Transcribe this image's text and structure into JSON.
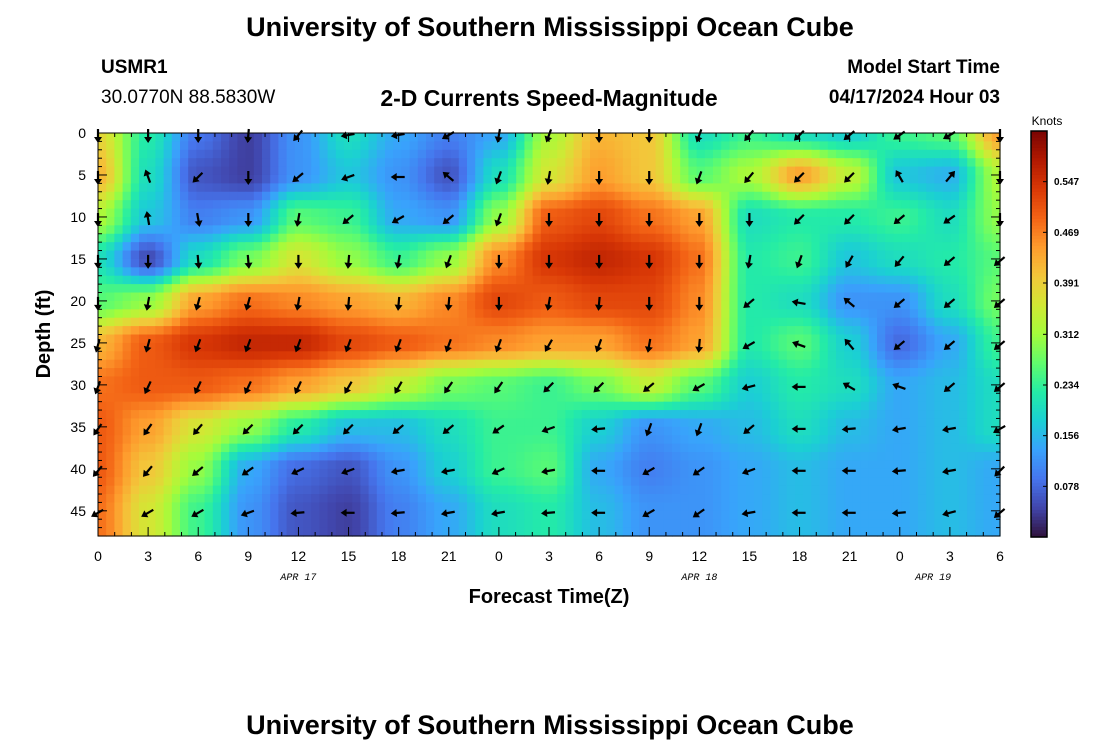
{
  "header": {
    "title": "University of Southern Mississippi Ocean Cube",
    "station_id": "USMR1",
    "coordinates": "30.0770N  88.5830W",
    "subtitle": "2-D Currents Speed-Magnitude",
    "model_label": "Model Start Time",
    "model_time": "04/17/2024 Hour 03"
  },
  "footer": {
    "title": "University of Southern Mississippi Ocean Cube"
  },
  "colors": {
    "scale": [
      "#30123b",
      "#4145ab",
      "#4675ed",
      "#39a2fc",
      "#1bcfd4",
      "#24eca6",
      "#61fc6c",
      "#a4fc3b",
      "#d1e834",
      "#f3c63a",
      "#fe9b2d",
      "#f36315",
      "#d93806",
      "#b11901",
      "#7a0402"
    ],
    "arrow": "#000000"
  },
  "chart_data": {
    "type": "heatmap",
    "title": "2-D Currents Speed-Magnitude",
    "xlabel": "Forecast Time(Z)",
    "ylabel": "Depth (ft)",
    "x_hours": [
      0,
      54
    ],
    "x_ticks": [
      "0",
      "3",
      "6",
      "9",
      "12",
      "15",
      "18",
      "21",
      "0",
      "3",
      "6",
      "9",
      "12",
      "15",
      "18",
      "21",
      "0",
      "3",
      "6"
    ],
    "date_labels": [
      {
        "text": "APR 17",
        "hour": 12
      },
      {
        "text": "APR 18",
        "hour": 36
      },
      {
        "text": "APR 19",
        "hour": 50
      }
    ],
    "y_ticks": [
      "0",
      "5",
      "10",
      "15",
      "20",
      "25",
      "30",
      "35",
      "40",
      "45"
    ],
    "ylim": [
      0,
      48
    ],
    "colorbar": {
      "label": "Knots",
      "ticks": [
        "0.547",
        "0.469",
        "0.391",
        "0.312",
        "0.234",
        "0.156",
        "0.078"
      ],
      "range": [
        0.0,
        0.625
      ]
    },
    "grid_depths": [
      0,
      5,
      10,
      15,
      20,
      25,
      30,
      35,
      40,
      45
    ],
    "grid_hours": [
      0,
      3,
      6,
      9,
      12,
      15,
      18,
      21,
      24,
      27,
      30,
      33,
      36,
      39,
      42,
      45,
      48,
      51,
      54
    ],
    "speed": [
      [
        0.38,
        0.22,
        0.09,
        0.04,
        0.12,
        0.2,
        0.14,
        0.1,
        0.14,
        0.32,
        0.42,
        0.4,
        0.2,
        0.24,
        0.2,
        0.18,
        0.24,
        0.26,
        0.44
      ],
      [
        0.42,
        0.2,
        0.06,
        0.04,
        0.12,
        0.17,
        0.12,
        0.06,
        0.2,
        0.36,
        0.44,
        0.4,
        0.26,
        0.32,
        0.44,
        0.34,
        0.17,
        0.15,
        0.32
      ],
      [
        0.32,
        0.17,
        0.1,
        0.12,
        0.26,
        0.24,
        0.14,
        0.12,
        0.3,
        0.5,
        0.52,
        0.48,
        0.44,
        0.2,
        0.22,
        0.22,
        0.24,
        0.2,
        0.3
      ],
      [
        0.2,
        0.05,
        0.2,
        0.28,
        0.36,
        0.3,
        0.24,
        0.3,
        0.46,
        0.54,
        0.56,
        0.54,
        0.48,
        0.22,
        0.24,
        0.17,
        0.2,
        0.22,
        0.26
      ],
      [
        0.26,
        0.3,
        0.44,
        0.48,
        0.46,
        0.44,
        0.42,
        0.46,
        0.52,
        0.5,
        0.52,
        0.52,
        0.46,
        0.22,
        0.2,
        0.12,
        0.12,
        0.2,
        0.28
      ],
      [
        0.42,
        0.5,
        0.54,
        0.56,
        0.56,
        0.52,
        0.5,
        0.48,
        0.46,
        0.44,
        0.44,
        0.48,
        0.44,
        0.22,
        0.26,
        0.18,
        0.08,
        0.14,
        0.24
      ],
      [
        0.48,
        0.5,
        0.5,
        0.48,
        0.44,
        0.4,
        0.34,
        0.28,
        0.26,
        0.24,
        0.28,
        0.34,
        0.26,
        0.18,
        0.22,
        0.2,
        0.14,
        0.16,
        0.2
      ],
      [
        0.5,
        0.44,
        0.36,
        0.3,
        0.22,
        0.16,
        0.16,
        0.2,
        0.24,
        0.24,
        0.18,
        0.12,
        0.14,
        0.16,
        0.2,
        0.16,
        0.14,
        0.16,
        0.2
      ],
      [
        0.5,
        0.4,
        0.3,
        0.14,
        0.08,
        0.06,
        0.12,
        0.18,
        0.24,
        0.26,
        0.14,
        0.1,
        0.12,
        0.14,
        0.16,
        0.14,
        0.14,
        0.16,
        0.14
      ],
      [
        0.48,
        0.36,
        0.24,
        0.12,
        0.06,
        0.04,
        0.1,
        0.14,
        0.2,
        0.22,
        0.16,
        0.12,
        0.12,
        0.14,
        0.16,
        0.14,
        0.14,
        0.16,
        0.14
      ]
    ],
    "arrow_dir_deg": [
      [
        180,
        180,
        180,
        185,
        220,
        260,
        260,
        240,
        190,
        200,
        180,
        180,
        200,
        220,
        225,
        230,
        235,
        240,
        180
      ],
      [
        180,
        340,
        225,
        180,
        230,
        250,
        270,
        310,
        200,
        190,
        180,
        180,
        200,
        220,
        225,
        225,
        330,
        40,
        180
      ],
      [
        180,
        350,
        170,
        180,
        190,
        230,
        240,
        230,
        200,
        180,
        180,
        180,
        180,
        180,
        225,
        225,
        230,
        235,
        180
      ],
      [
        180,
        180,
        175,
        175,
        180,
        185,
        190,
        200,
        180,
        180,
        180,
        180,
        180,
        190,
        200,
        210,
        220,
        230,
        230
      ],
      [
        180,
        190,
        195,
        195,
        190,
        185,
        185,
        185,
        180,
        190,
        185,
        180,
        180,
        230,
        280,
        310,
        230,
        230,
        230
      ],
      [
        195,
        195,
        200,
        200,
        200,
        200,
        200,
        200,
        200,
        210,
        200,
        190,
        185,
        240,
        290,
        320,
        230,
        230,
        230
      ],
      [
        200,
        205,
        205,
        205,
        205,
        210,
        210,
        215,
        215,
        225,
        225,
        230,
        240,
        255,
        270,
        300,
        290,
        230,
        230
      ],
      [
        215,
        215,
        220,
        225,
        225,
        225,
        230,
        230,
        235,
        250,
        265,
        200,
        200,
        230,
        270,
        265,
        260,
        260,
        240
      ],
      [
        220,
        220,
        230,
        235,
        245,
        250,
        260,
        260,
        245,
        260,
        270,
        240,
        235,
        250,
        270,
        270,
        265,
        260,
        225
      ],
      [
        240,
        240,
        240,
        250,
        265,
        270,
        265,
        260,
        260,
        265,
        270,
        240,
        235,
        260,
        270,
        270,
        265,
        255,
        230
      ]
    ]
  }
}
